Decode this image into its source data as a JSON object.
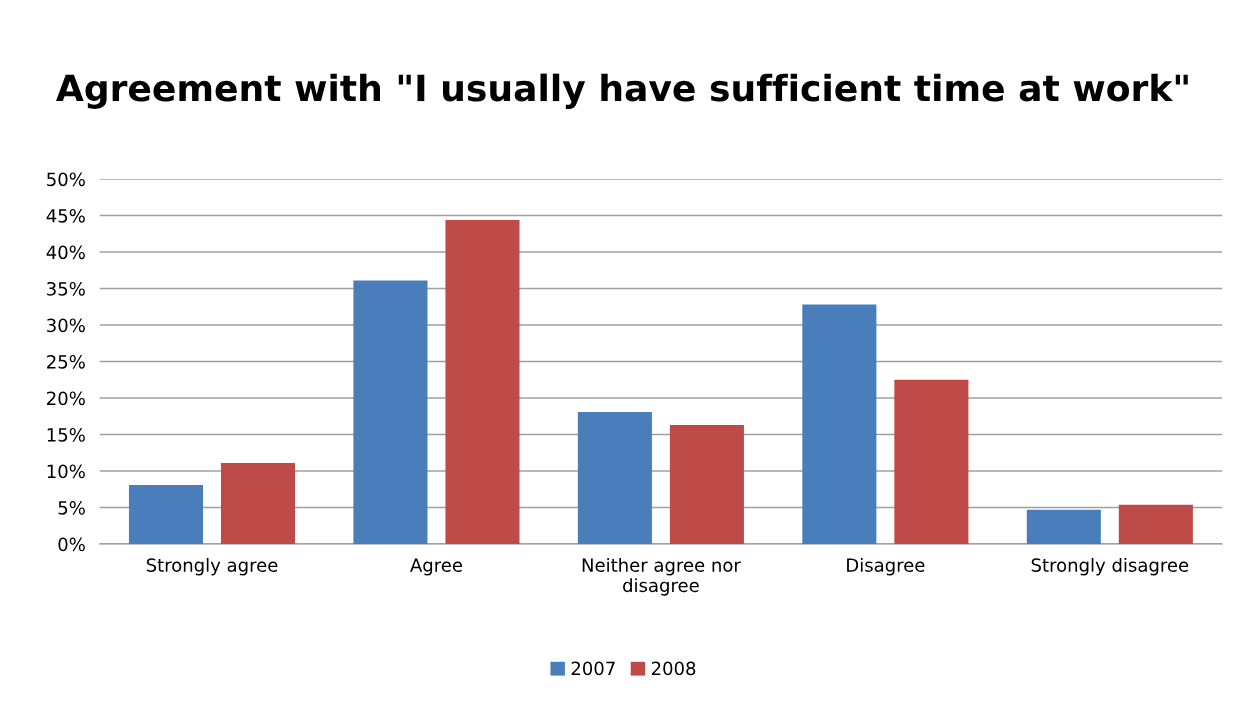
{
  "chart_data": {
    "type": "bar",
    "title": "Agreement with \"I usually have sufficient time at work\"",
    "categories": [
      "Strongly agree",
      "Agree",
      "Neither agree nor disagree",
      "Disagree",
      "Strongly disagree"
    ],
    "series": [
      {
        "name": "2007",
        "color": "#4a7ebb",
        "values": [
          8.1,
          36.1,
          18.1,
          32.8,
          4.7
        ]
      },
      {
        "name": "2008",
        "color": "#be4b48",
        "values": [
          11.1,
          44.4,
          16.3,
          22.5,
          5.4
        ]
      }
    ],
    "ylim": [
      0,
      50
    ],
    "yticks": [
      {
        "value": 0,
        "label": "0%"
      },
      {
        "value": 5,
        "label": "5%"
      },
      {
        "value": 10,
        "label": "10%"
      },
      {
        "value": 15,
        "label": "15%"
      },
      {
        "value": 20,
        "label": "20%"
      },
      {
        "value": 25,
        "label": "25%"
      },
      {
        "value": 30,
        "label": "30%"
      },
      {
        "value": 35,
        "label": "35%"
      },
      {
        "value": 40,
        "label": "40%"
      },
      {
        "value": 45,
        "label": "45%"
      },
      {
        "value": 50,
        "label": "50%"
      }
    ],
    "grid": "y",
    "legend": "bottom"
  }
}
